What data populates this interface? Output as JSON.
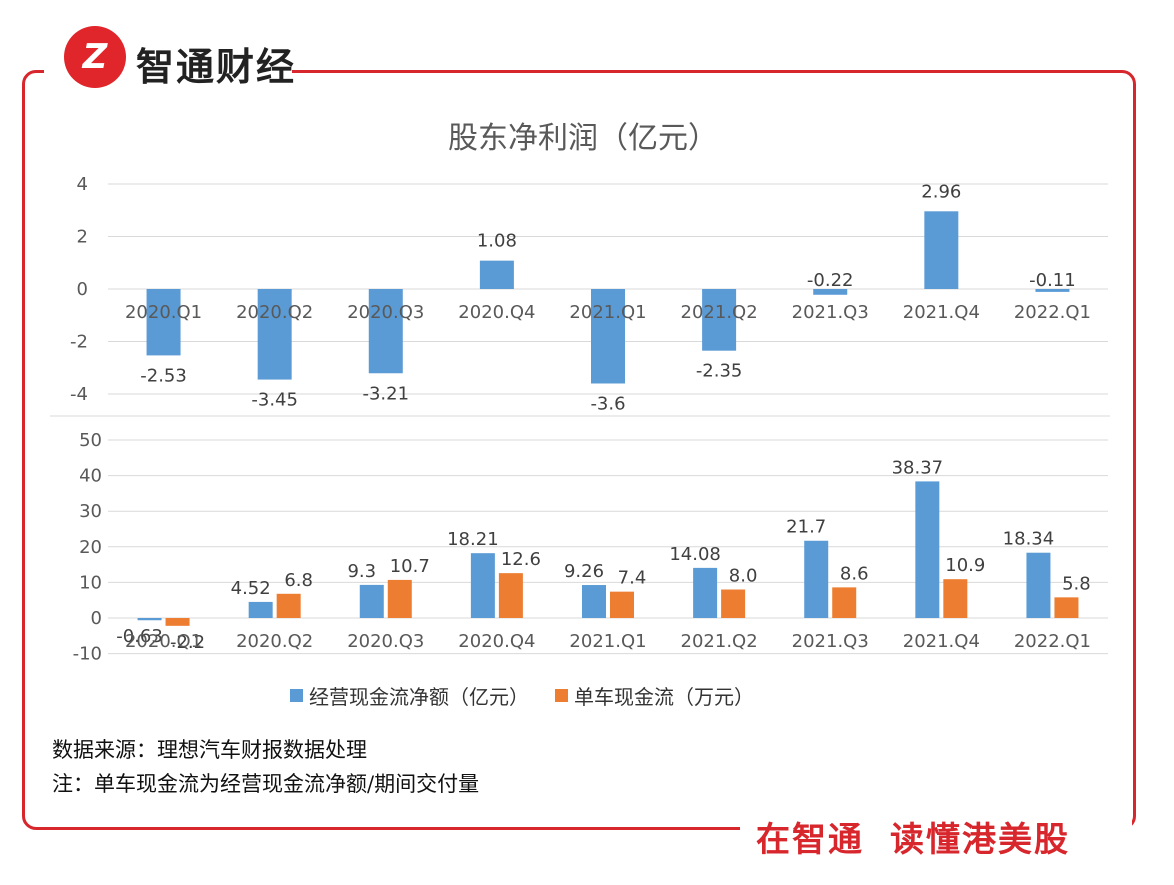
{
  "brand": {
    "logo_mark": "Z",
    "logo_text": "智通财经",
    "slogan_a": "在智通",
    "slogan_b": "读懂港美股"
  },
  "colors": {
    "blue": "#5b9bd5",
    "orange": "#ed7d31",
    "red": "#d7262c",
    "grid": "#d9d9d9"
  },
  "notes": {
    "source": "数据来源：理想汽车财报数据处理",
    "remark": "注：单车现金流为经营现金流净额/期间交付量"
  },
  "chart_data": [
    {
      "type": "bar",
      "title": "股东净利润（亿元）",
      "categories": [
        "2020.Q1",
        "2020.Q2",
        "2020.Q3",
        "2020.Q4",
        "2021.Q1",
        "2021.Q2",
        "2021.Q3",
        "2021.Q4",
        "2022.Q1"
      ],
      "series": [
        {
          "name": "股东净利润",
          "values": [
            -2.53,
            -3.45,
            -3.21,
            1.08,
            -3.6,
            -2.35,
            -0.22,
            2.96,
            -0.11
          ],
          "labels": [
            "-2.53",
            "-3.45",
            "-3.21",
            "1.08",
            "-3.6",
            "-2.35",
            "-0.22",
            "2.96",
            "-0.11"
          ]
        }
      ],
      "ylim": [
        -4,
        4
      ],
      "yticks": [
        -4,
        -2,
        0,
        2,
        4
      ],
      "ytick_labels": [
        "-4",
        "-2",
        "0",
        "2",
        "4"
      ]
    },
    {
      "type": "bar",
      "title": "",
      "categories": [
        "2020.Q1",
        "2020.Q2",
        "2020.Q3",
        "2020.Q4",
        "2021.Q1",
        "2021.Q2",
        "2021.Q3",
        "2021.Q4",
        "2022.Q1"
      ],
      "series": [
        {
          "name": "经营现金流净额（亿元）",
          "values": [
            -0.63,
            4.52,
            9.3,
            18.21,
            9.26,
            14.08,
            21.7,
            38.37,
            18.34
          ],
          "labels": [
            "-0.63",
            "4.52",
            "9.3",
            "18.21",
            "9.26",
            "14.08",
            "21.7",
            "38.37",
            "18.34"
          ]
        },
        {
          "name": "单车现金流（万元）",
          "values": [
            -2.2,
            6.8,
            10.7,
            12.6,
            7.4,
            8.0,
            8.6,
            10.9,
            5.8
          ],
          "labels": [
            "-2.2",
            "6.8",
            "10.7",
            "12.6",
            "7.4",
            "8.0",
            "8.6",
            "10.9",
            "5.8"
          ]
        }
      ],
      "ylim": [
        -10,
        50
      ],
      "yticks": [
        -10,
        0,
        10,
        20,
        30,
        40,
        50
      ],
      "ytick_labels": [
        "-10",
        "0",
        "10",
        "20",
        "30",
        "40",
        "50"
      ],
      "legend": "bottom"
    }
  ]
}
